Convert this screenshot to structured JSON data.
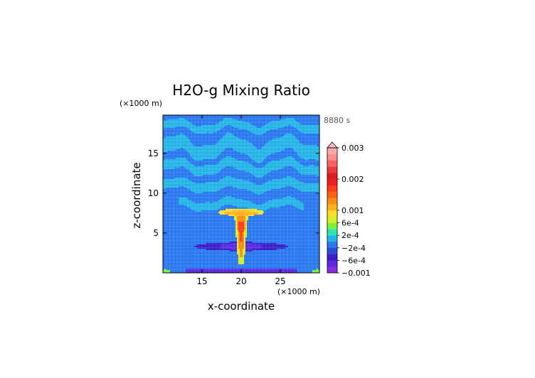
{
  "chart_data": {
    "type": "heatmap",
    "title": "H2O-g Mixing Ratio",
    "time_label": "8880 s",
    "xlabel": "x-coordinate",
    "ylabel": "z-coordinate",
    "x_unit": "(×1000 m)",
    "y_unit": "(×1000 m)",
    "xlim": [
      10,
      30
    ],
    "ylim": [
      0,
      19.8
    ],
    "x_ticks": [
      {
        "value": 15,
        "label": "15"
      },
      {
        "value": 20,
        "label": "20"
      },
      {
        "value": 25,
        "label": "25"
      }
    ],
    "y_ticks": [
      {
        "value": 5,
        "label": "5"
      },
      {
        "value": 10,
        "label": "10"
      },
      {
        "value": 15,
        "label": "15"
      }
    ],
    "colorbar": {
      "levels": [
        -0.001,
        -0.0008,
        -0.0006,
        -0.0004,
        -0.0002,
        0,
        0.0002,
        0.0004,
        0.0006,
        0.0008,
        0.001,
        0.0012,
        0.0014,
        0.0016,
        0.0018,
        0.002,
        0.0022,
        0.0024,
        0.0026,
        0.0028,
        0.003
      ],
      "colors": [
        "#8a2be2",
        "#5a2be0",
        "#3c1ec8",
        "#2d4bd8",
        "#2a78f0",
        "#25b4e6",
        "#2ee6b4",
        "#7cf03c",
        "#d2f028",
        "#ffe028",
        "#ffb41e",
        "#ff8c14",
        "#ff6414",
        "#ff3c1e",
        "#f01e1e",
        "#dc1e1e",
        "#e63c3c",
        "#ff6464",
        "#ff8c8c",
        "#ffaaaa"
      ],
      "extend_top_color": "#ffc0c0",
      "tick_labels": [
        {
          "value": 0.003,
          "label": "0.003"
        },
        {
          "value": 0.002,
          "label": "0.002"
        },
        {
          "value": 0.001,
          "label": "0.001"
        },
        {
          "value": 0.0006,
          "label": "6e-4"
        },
        {
          "value": 0.0002,
          "label": "2e-4"
        },
        {
          "value": -0.0002,
          "label": "−2e-4"
        },
        {
          "value": -0.0006,
          "label": "−6e-4"
        },
        {
          "value": -0.001,
          "label": "−0.001"
        }
      ]
    },
    "background_value": -0.0001,
    "features": [
      {
        "kind": "band",
        "zc": 18.4,
        "zh": 0.5,
        "wobble": 0.5,
        "value": 0.0001,
        "xlim": [
          10,
          30
        ]
      },
      {
        "kind": "band",
        "zc": 15.7,
        "zh": 0.9,
        "wobble": 0.8,
        "value": 0.0001,
        "xlim": [
          10,
          30
        ]
      },
      {
        "kind": "band",
        "zc": 13.3,
        "zh": 0.6,
        "wobble": 0.6,
        "value": 0.0001,
        "xlim": [
          10,
          30
        ]
      },
      {
        "kind": "band",
        "zc": 11.0,
        "zh": 0.6,
        "wobble": 0.4,
        "value": 0.0001,
        "xlim": [
          10,
          30
        ]
      },
      {
        "kind": "band",
        "zc": 8.6,
        "zh": 0.5,
        "wobble": 0.4,
        "value": 0.0001,
        "xlim": [
          12,
          28
        ]
      },
      {
        "kind": "blob",
        "xc": 20,
        "zc": 7.6,
        "rx": 3.0,
        "rz": 0.45,
        "value": 0.0008
      },
      {
        "kind": "blob",
        "xc": 20,
        "zc": 7.5,
        "rx": 2.2,
        "rz": 0.3,
        "value": 0.0011
      },
      {
        "kind": "blob",
        "xc": 20,
        "zc": 3.3,
        "rx": 6.0,
        "rz": 0.55,
        "value": -0.00055
      },
      {
        "kind": "blob",
        "xc": 20,
        "zc": 3.3,
        "rx": 2.8,
        "rz": 0.4,
        "value": -0.0007
      },
      {
        "kind": "plume",
        "xc": 20,
        "zlim": [
          1.0,
          7.5
        ],
        "wbot": 0.35,
        "wtop": 0.9,
        "value": 0.0007
      },
      {
        "kind": "plume",
        "xc": 20,
        "zlim": [
          2.0,
          7.2
        ],
        "wbot": 0.2,
        "wtop": 0.6,
        "value": 0.0012
      },
      {
        "kind": "plume",
        "xc": 20,
        "zlim": [
          4.0,
          6.5
        ],
        "wbot": 0.2,
        "wtop": 0.35,
        "value": 0.0016
      },
      {
        "kind": "band",
        "zc": 0.25,
        "zh": 0.25,
        "wobble": 0.0,
        "value": -0.00065,
        "xlim": [
          13,
          27
        ]
      },
      {
        "kind": "blob",
        "xc": 10.3,
        "zc": 0.2,
        "rx": 0.6,
        "rz": 0.25,
        "value": 0.0005
      },
      {
        "kind": "blob",
        "xc": 29.7,
        "zc": 0.2,
        "rx": 0.6,
        "rz": 0.25,
        "value": 0.0005
      }
    ]
  }
}
